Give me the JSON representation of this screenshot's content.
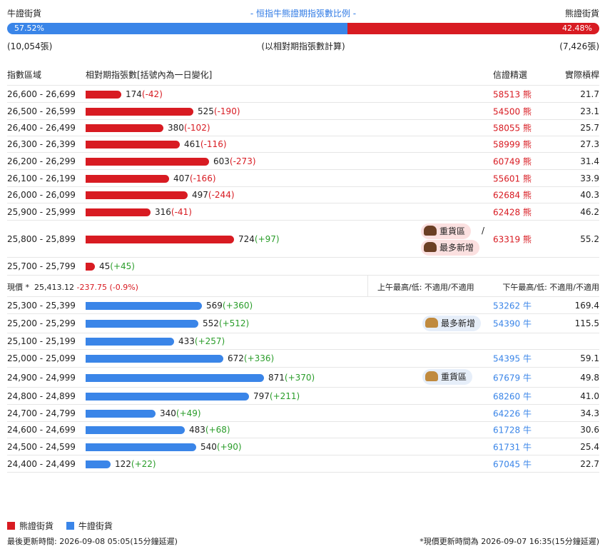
{
  "header": {
    "left_label": "牛證街貨",
    "title": "- 恒指牛熊證期指張數比例 -",
    "right_label": "熊證街貨"
  },
  "ratio": {
    "bull_pct": "57.52%",
    "bear_pct": "42.48%",
    "bull_fraction": 0.5752
  },
  "counts": {
    "bull": "(10,054張)",
    "note": "(以相對期指張數計算)",
    "bear": "(7,426張)"
  },
  "columns": {
    "range": "指數區域",
    "contracts": "相對期指張數[括號內為一日變化]",
    "code": "信證精選",
    "leverage": "實際槓桿"
  },
  "bear_rows": [
    {
      "range": "26,600 - 26,699",
      "value": 174,
      "value_text": "174",
      "change": "(-42)",
      "code": "58513 熊",
      "leverage": "21.7"
    },
    {
      "range": "26,500 - 26,599",
      "value": 525,
      "value_text": "525",
      "change": "(-190)",
      "code": "54500 熊",
      "leverage": "23.1"
    },
    {
      "range": "26,400 - 26,499",
      "value": 380,
      "value_text": "380",
      "change": "(-102)",
      "code": "58055 熊",
      "leverage": "25.7"
    },
    {
      "range": "26,300 - 26,399",
      "value": 461,
      "value_text": "461",
      "change": "(-116)",
      "code": "58999 熊",
      "leverage": "27.3"
    },
    {
      "range": "26,200 - 26,299",
      "value": 603,
      "value_text": "603",
      "change": "(-273)",
      "code": "60749 熊",
      "leverage": "31.4"
    },
    {
      "range": "26,100 - 26,199",
      "value": 407,
      "value_text": "407",
      "change": "(-166)",
      "code": "55601 熊",
      "leverage": "33.9"
    },
    {
      "range": "26,000 - 26,099",
      "value": 497,
      "value_text": "497",
      "change": "(-244)",
      "code": "62684 熊",
      "leverage": "40.3"
    },
    {
      "range": "25,900 - 25,999",
      "value": 316,
      "value_text": "316",
      "change": "(-41)",
      "code": "62428 熊",
      "leverage": "46.2"
    },
    {
      "range": "25,800 - 25,899",
      "value": 724,
      "value_text": "724",
      "change": "(+97)",
      "code": "63319 熊",
      "leverage": "55.2"
    },
    {
      "range": "25,700 - 25,799",
      "value": 45,
      "value_text": "45",
      "change": "(+45)",
      "code": "",
      "leverage": ""
    }
  ],
  "bear_badges": {
    "heavy": "重貨區",
    "slash": "/",
    "most_new": "最多新增"
  },
  "price_row": {
    "label": "現價 *",
    "price": "25,413.12",
    "change": "-237.75 (-0.9%)",
    "am": "上午最高/低: 不適用/不適用",
    "pm": "下午最高/低: 不適用/不適用"
  },
  "bull_rows": [
    {
      "range": "25,300 - 25,399",
      "value": 569,
      "value_text": "569",
      "change": "(+360)",
      "code": "53262 牛",
      "leverage": "169.4"
    },
    {
      "range": "25,200 - 25,299",
      "value": 552,
      "value_text": "552",
      "change": "(+512)",
      "code": "54390 牛",
      "leverage": "115.5"
    },
    {
      "range": "25,100 - 25,199",
      "value": 433,
      "value_text": "433",
      "change": "(+257)",
      "code": "",
      "leverage": ""
    },
    {
      "range": "25,000 - 25,099",
      "value": 672,
      "value_text": "672",
      "change": "(+336)",
      "code": "54395 牛",
      "leverage": "59.1"
    },
    {
      "range": "24,900 - 24,999",
      "value": 871,
      "value_text": "871",
      "change": "(+370)",
      "code": "67679 牛",
      "leverage": "49.8"
    },
    {
      "range": "24,800 - 24,899",
      "value": 797,
      "value_text": "797",
      "change": "(+211)",
      "code": "68260 牛",
      "leverage": "41.0"
    },
    {
      "range": "24,700 - 24,799",
      "value": 340,
      "value_text": "340",
      "change": "(+49)",
      "code": "64226 牛",
      "leverage": "34.3"
    },
    {
      "range": "24,600 - 24,699",
      "value": 483,
      "value_text": "483",
      "change": "(+68)",
      "code": "61728 牛",
      "leverage": "30.6"
    },
    {
      "range": "24,500 - 24,599",
      "value": 540,
      "value_text": "540",
      "change": "(+90)",
      "code": "61731 牛",
      "leverage": "25.4"
    },
    {
      "range": "24,400 - 24,499",
      "value": 122,
      "value_text": "122",
      "change": "(+22)",
      "code": "67045 牛",
      "leverage": "22.7"
    }
  ],
  "bull_badges": {
    "most_new": "最多新增",
    "heavy": "重貨區"
  },
  "legend": {
    "bear": "熊證街貨",
    "bull": "牛證街貨"
  },
  "footer": {
    "updated": "最後更新時間: 2026-09-08 05:05(15分鐘延遲)",
    "price_updated": "*現價更新時間為 2026-09-07 16:35(15分鐘延遲)"
  },
  "colors": {
    "bear": "#d81b22",
    "bull": "#3a85e8",
    "positive": "#2a9d2a"
  }
}
